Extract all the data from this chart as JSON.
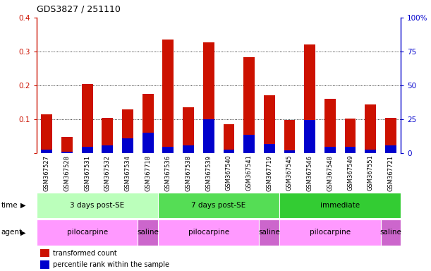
{
  "title": "GDS3827 / 251110",
  "samples": [
    "GSM367527",
    "GSM367528",
    "GSM367531",
    "GSM367532",
    "GSM367534",
    "GSM367718",
    "GSM367536",
    "GSM367538",
    "GSM367539",
    "GSM367540",
    "GSM367541",
    "GSM367719",
    "GSM367545",
    "GSM367546",
    "GSM367548",
    "GSM367549",
    "GSM367551",
    "GSM367721"
  ],
  "red_values": [
    0.115,
    0.048,
    0.205,
    0.105,
    0.13,
    0.175,
    0.335,
    0.135,
    0.328,
    0.085,
    0.283,
    0.17,
    0.097,
    0.32,
    0.16,
    0.103,
    0.143,
    0.105
  ],
  "blue_values": [
    0.01,
    0.004,
    0.018,
    0.022,
    0.043,
    0.06,
    0.018,
    0.022,
    0.1,
    0.01,
    0.055,
    0.028,
    0.008,
    0.098,
    0.018,
    0.018,
    0.01,
    0.022
  ],
  "ylim_left": [
    0.0,
    0.4
  ],
  "ylim_right": [
    0,
    100
  ],
  "yticks_left": [
    0.0,
    0.1,
    0.2,
    0.3,
    0.4
  ],
  "yticks_right": [
    0,
    25,
    50,
    75,
    100
  ],
  "red_color": "#cc1100",
  "blue_color": "#0000cc",
  "time_groups": [
    {
      "label": "3 days post-SE",
      "start": 0,
      "end": 6,
      "color": "#bbffbb"
    },
    {
      "label": "7 days post-SE",
      "start": 6,
      "end": 12,
      "color": "#55dd55"
    },
    {
      "label": "immediate",
      "start": 12,
      "end": 18,
      "color": "#33cc33"
    }
  ],
  "agent_groups": [
    {
      "label": "pilocarpine",
      "start": 0,
      "end": 5,
      "color": "#ff99ff"
    },
    {
      "label": "saline",
      "start": 5,
      "end": 6,
      "color": "#cc66cc"
    },
    {
      "label": "pilocarpine",
      "start": 6,
      "end": 11,
      "color": "#ff99ff"
    },
    {
      "label": "saline",
      "start": 11,
      "end": 12,
      "color": "#cc66cc"
    },
    {
      "label": "pilocarpine",
      "start": 12,
      "end": 17,
      "color": "#ff99ff"
    },
    {
      "label": "saline",
      "start": 17,
      "end": 18,
      "color": "#cc66cc"
    }
  ],
  "legend_items": [
    {
      "label": "transformed count",
      "color": "#cc1100"
    },
    {
      "label": "percentile rank within the sample",
      "color": "#0000cc"
    }
  ],
  "xtick_bg": "#dddddd"
}
